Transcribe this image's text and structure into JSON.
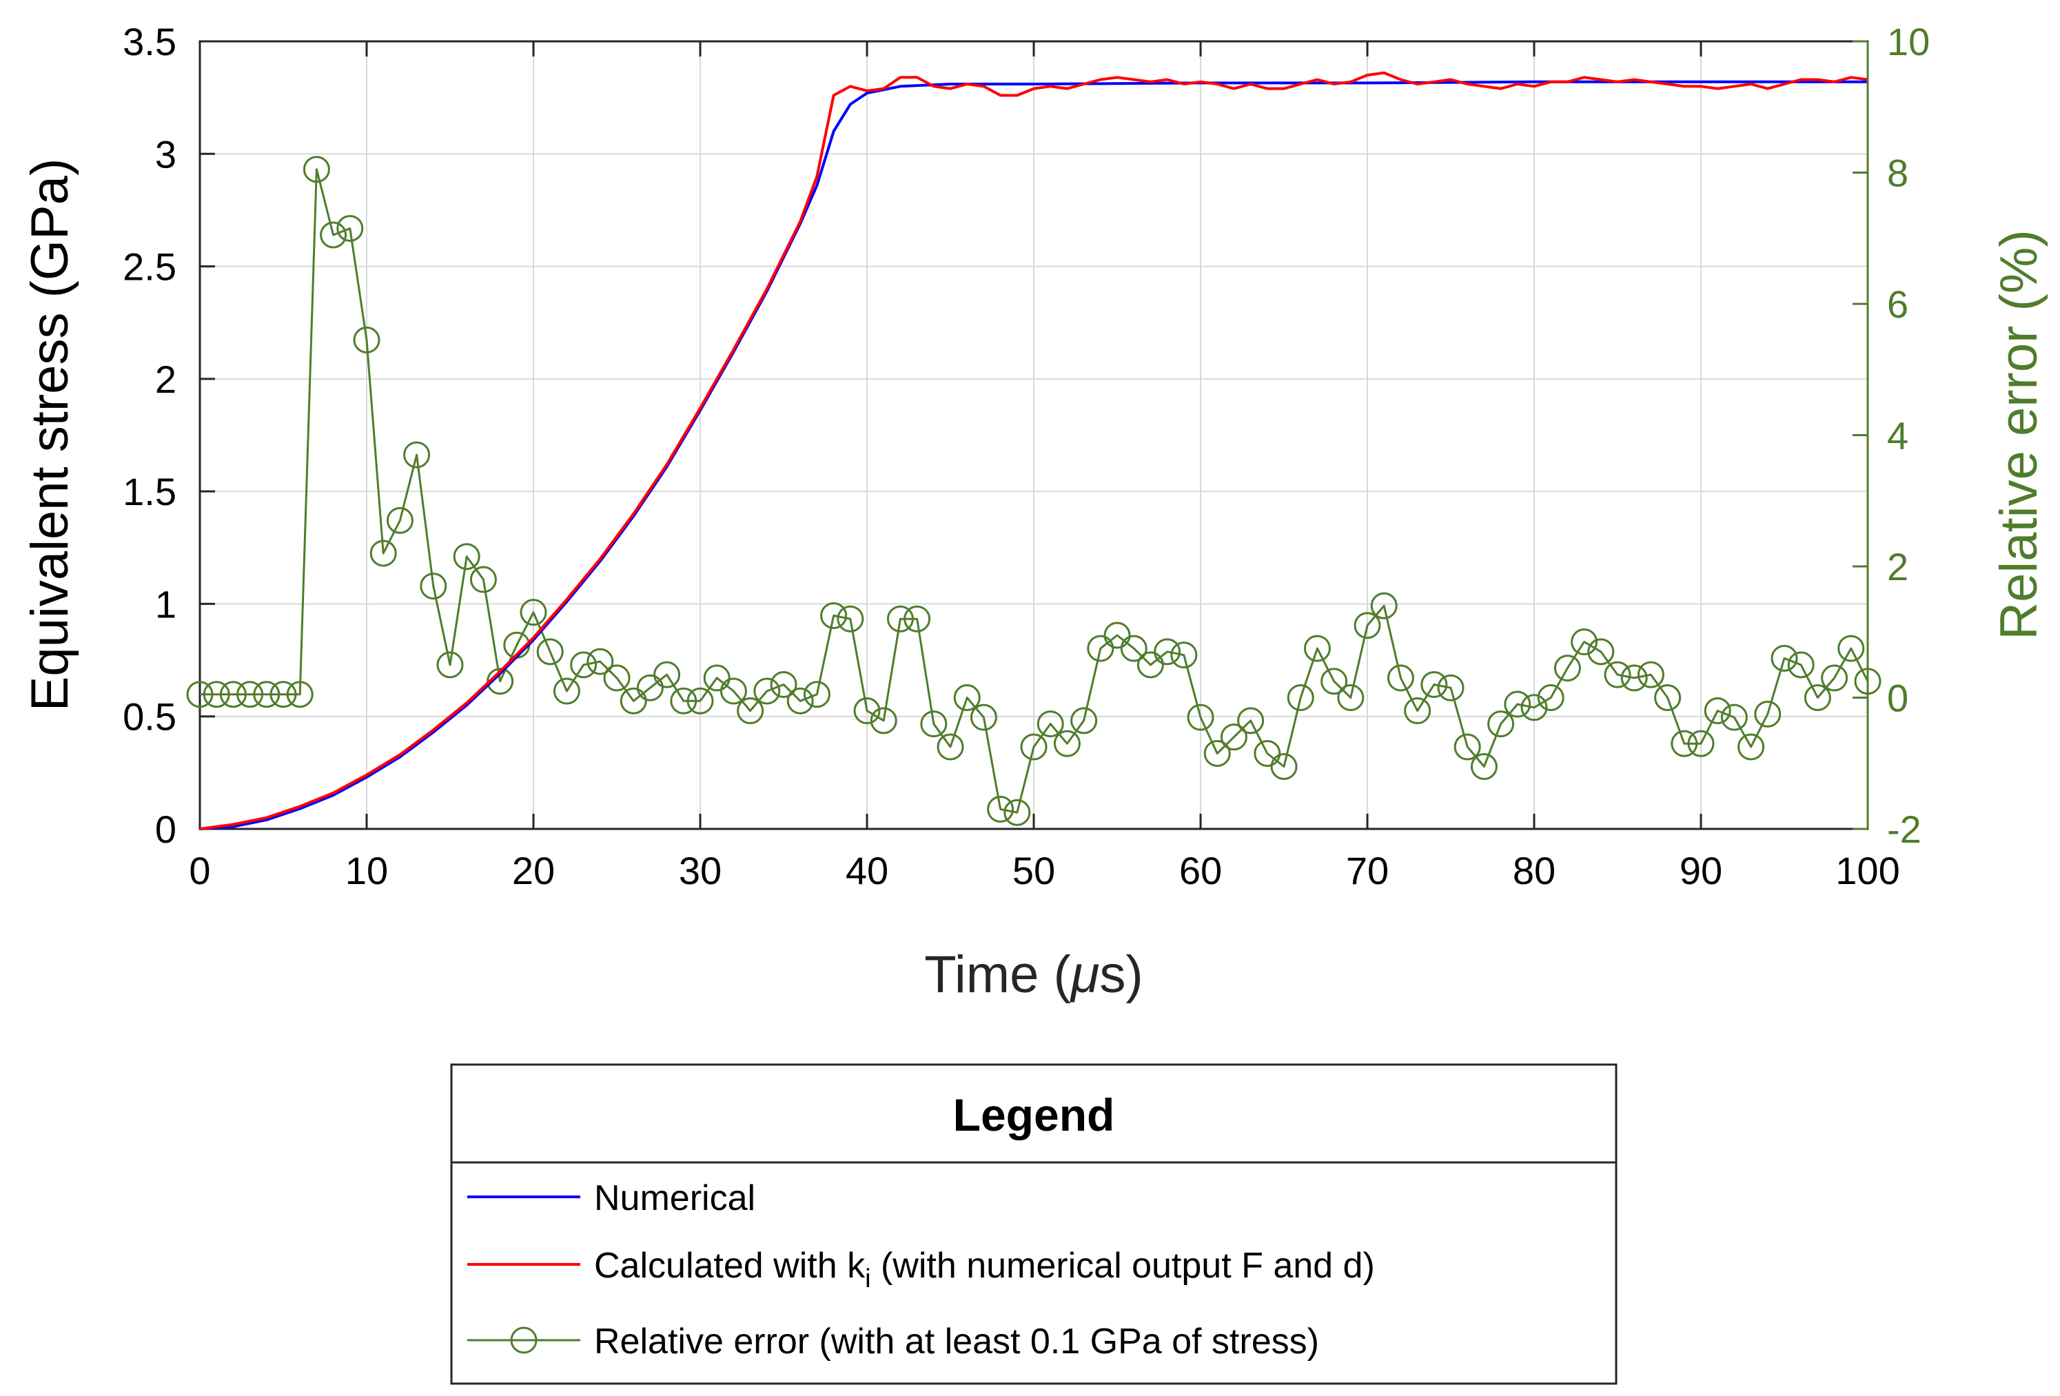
{
  "chart_data": {
    "type": "line",
    "title": "",
    "xlabel": "Time (μs)",
    "xlabel_parts": {
      "pre": "Time (",
      "mu": "μ",
      "post": "s)"
    },
    "ylabel_left": "Equivalent stress (GPa)",
    "ylabel_right": "Relative error (%)",
    "xlim": [
      0,
      100
    ],
    "ylim_left": [
      0,
      3.5
    ],
    "ylim_right": [
      -2,
      10
    ],
    "xticks": [
      "0",
      "10",
      "20",
      "30",
      "40",
      "50",
      "60",
      "70",
      "80",
      "90",
      "100"
    ],
    "yticks_left": [
      "0",
      "0.5",
      "1",
      "1.5",
      "2",
      "2.5",
      "3",
      "3.5"
    ],
    "yticks_right": [
      "-2",
      "0",
      "2",
      "4",
      "6",
      "8",
      "10"
    ],
    "grid": true,
    "colors": {
      "numerical": "#0000ff",
      "calculated": "#ff0000",
      "error": "#4f7d2b",
      "axis_right": "#4f7d2b"
    },
    "series": [
      {
        "name": "Numerical",
        "axis": "left",
        "x": [
          0,
          2,
          4,
          6,
          8,
          10,
          12,
          14,
          16,
          18,
          20,
          22,
          24,
          26,
          28,
          30,
          32,
          34,
          36,
          37,
          38,
          39,
          40,
          42,
          45,
          50,
          60,
          70,
          80,
          90,
          100
        ],
        "values": [
          0,
          0.01,
          0.04,
          0.09,
          0.15,
          0.23,
          0.32,
          0.43,
          0.55,
          0.69,
          0.84,
          1.01,
          1.19,
          1.39,
          1.61,
          1.86,
          2.12,
          2.39,
          2.69,
          2.86,
          3.1,
          3.22,
          3.27,
          3.3,
          3.31,
          3.31,
          3.315,
          3.315,
          3.32,
          3.32,
          3.32
        ]
      },
      {
        "name": "Calculated with k_i (with numerical output F and d)",
        "axis": "left",
        "x": [
          0,
          2,
          4,
          6,
          8,
          10,
          12,
          14,
          16,
          18,
          20,
          22,
          24,
          26,
          28,
          30,
          32,
          34,
          36,
          37,
          38,
          39,
          40,
          41,
          42,
          43,
          44,
          45,
          46,
          47,
          48,
          49,
          50,
          51,
          52,
          53,
          54,
          55,
          56,
          57,
          58,
          59,
          60,
          61,
          62,
          63,
          64,
          65,
          66,
          67,
          68,
          69,
          70,
          71,
          72,
          73,
          74,
          75,
          76,
          77,
          78,
          79,
          80,
          81,
          82,
          83,
          84,
          85,
          86,
          87,
          88,
          89,
          90,
          91,
          92,
          93,
          94,
          95,
          96,
          97,
          98,
          99,
          100
        ],
        "values": [
          0,
          0.02,
          0.05,
          0.1,
          0.16,
          0.24,
          0.33,
          0.44,
          0.56,
          0.7,
          0.85,
          1.02,
          1.2,
          1.4,
          1.62,
          1.87,
          2.13,
          2.4,
          2.7,
          2.9,
          3.26,
          3.3,
          3.28,
          3.29,
          3.34,
          3.34,
          3.3,
          3.29,
          3.31,
          3.3,
          3.26,
          3.26,
          3.29,
          3.3,
          3.29,
          3.31,
          3.33,
          3.34,
          3.33,
          3.32,
          3.33,
          3.31,
          3.32,
          3.31,
          3.29,
          3.31,
          3.29,
          3.29,
          3.31,
          3.33,
          3.31,
          3.32,
          3.35,
          3.36,
          3.33,
          3.31,
          3.32,
          3.33,
          3.31,
          3.3,
          3.29,
          3.31,
          3.3,
          3.32,
          3.32,
          3.34,
          3.33,
          3.32,
          3.33,
          3.32,
          3.31,
          3.3,
          3.3,
          3.29,
          3.3,
          3.31,
          3.29,
          3.31,
          3.33,
          3.33,
          3.32,
          3.34,
          3.33
        ]
      },
      {
        "name": "Relative error (with at least 0.1 GPa of stress)",
        "axis": "right",
        "marker": "circle",
        "x": [
          0,
          1,
          2,
          3,
          4,
          5,
          6,
          7,
          8,
          9,
          10,
          11,
          12,
          13,
          14,
          15,
          16,
          17,
          18,
          19,
          20,
          21,
          22,
          23,
          24,
          25,
          26,
          27,
          28,
          29,
          30,
          31,
          32,
          33,
          34,
          35,
          36,
          37,
          38,
          39,
          40,
          41,
          42,
          43,
          44,
          45,
          46,
          47,
          48,
          49,
          50,
          51,
          52,
          53,
          54,
          55,
          56,
          57,
          58,
          59,
          60,
          61,
          62,
          63,
          64,
          65,
          66,
          67,
          68,
          69,
          70,
          71,
          72,
          73,
          74,
          75,
          76,
          77,
          78,
          79,
          80,
          81,
          82,
          83,
          84,
          85,
          86,
          87,
          88,
          89,
          90,
          91,
          92,
          93,
          94,
          95,
          96,
          97,
          98,
          99,
          100
        ],
        "values": [
          0.05,
          0.05,
          0.05,
          0.05,
          0.05,
          0.05,
          0.05,
          8.05,
          7.05,
          7.15,
          5.45,
          2.2,
          2.7,
          3.7,
          1.7,
          0.5,
          2.15,
          1.8,
          0.25,
          0.8,
          1.3,
          0.7,
          0.1,
          0.5,
          0.55,
          0.3,
          -0.05,
          0.15,
          0.35,
          -0.05,
          -0.05,
          0.3,
          0.1,
          -0.2,
          0.1,
          0.2,
          -0.05,
          0.05,
          1.25,
          1.2,
          -0.2,
          -0.35,
          1.2,
          1.2,
          -0.4,
          -0.75,
          0,
          -0.3,
          -1.7,
          -1.75,
          -0.75,
          -0.4,
          -0.7,
          -0.35,
          0.75,
          0.95,
          0.75,
          0.5,
          0.7,
          0.65,
          -0.3,
          -0.85,
          -0.6,
          -0.35,
          -0.85,
          -1.05,
          0,
          0.75,
          0.25,
          0,
          1.1,
          1.4,
          0.3,
          -0.2,
          0.2,
          0.15,
          -0.75,
          -1.05,
          -0.4,
          -0.1,
          -0.15,
          0,
          0.45,
          0.85,
          0.7,
          0.35,
          0.3,
          0.35,
          0.0,
          -0.7,
          -0.7,
          -0.2,
          -0.3,
          -0.75,
          -0.25,
          0.6,
          0.5,
          0.0,
          0.3,
          0.75,
          0.25
        ]
      }
    ]
  },
  "legend": {
    "title": "Legend",
    "items": [
      {
        "label": "Numerical"
      },
      {
        "label_pre": "Calculated with k",
        "label_sub": "i",
        "label_post": " (with numerical output F and d)"
      },
      {
        "label": "Relative error (with at least 0.1 GPa of stress)"
      }
    ]
  }
}
